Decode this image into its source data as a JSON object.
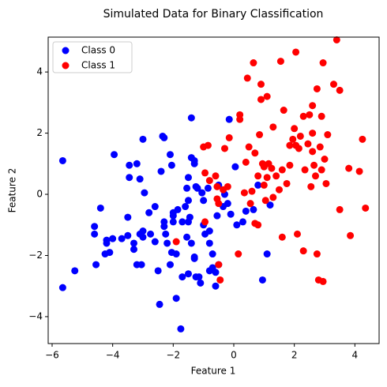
{
  "chart_data": {
    "type": "scatter",
    "title": "Simulated Data for Binary Classification",
    "x_label": "Feature 1",
    "y_label": "Feature 2",
    "xlim": [
      -6.13,
      4.8
    ],
    "ylim": [
      -4.88,
      5.14
    ],
    "xticks": [
      {
        "value": -6,
        "label": "−6"
      },
      {
        "value": -4,
        "label": "−4"
      },
      {
        "value": -2,
        "label": "−2"
      },
      0,
      2,
      4
    ],
    "yticks": [
      {
        "value": -4,
        "label": "−4"
      },
      {
        "value": -2,
        "label": "−2"
      },
      0,
      2,
      4
    ],
    "legend": "upper left",
    "series": [
      {
        "name": "Class 0",
        "color": "#0000ff",
        "x": [
          -5.65,
          -5.65,
          -5.25,
          -4.6,
          -4.6,
          -4.4,
          -4.55,
          -4.2,
          -4.2,
          -4.25,
          -4.1,
          -4.0,
          -3.95,
          -3.7,
          -3.5,
          -3.5,
          -3.45,
          -3.45,
          -3.3,
          -3.3,
          -3.2,
          -3.1,
          -3.05,
          -3.2,
          -3.1,
          -3.0,
          -3.0,
          -2.95,
          -3.0,
          -2.8,
          -2.6,
          -2.75,
          -2.6,
          -2.5,
          -2.45,
          -2.4,
          -2.35,
          -2.3,
          -2.3,
          -2.25,
          -2.2,
          -2.1,
          -2.05,
          -2.0,
          -2.0,
          -2.05,
          -2.1,
          -2.0,
          -1.9,
          -1.9,
          -1.85,
          -1.7,
          -1.7,
          -1.6,
          -1.55,
          -1.5,
          -1.45,
          -1.4,
          -1.5,
          -1.55,
          -1.5,
          -1.5,
          -1.4,
          -1.4,
          -1.3,
          -1.3,
          -1.3,
          -1.3,
          -1.2,
          -1.15,
          -1.1,
          -1.25,
          -1.0,
          -1.0,
          -0.95,
          -0.85,
          -0.8,
          -0.8,
          -0.8,
          -0.7,
          -0.7,
          -0.6,
          -0.6,
          -0.55,
          -0.5,
          -0.5,
          -0.3,
          -0.35,
          -0.2,
          -0.15,
          -0.1,
          0.05,
          0.1,
          0.3,
          0.4,
          0.65,
          0.8,
          0.95,
          1.1,
          1.2,
          -1.75,
          -2.3,
          -1.05,
          -1.25
        ],
        "values": [
          1.1,
          -3.05,
          -2.5,
          -1.05,
          -1.3,
          -0.45,
          -2.3,
          -1.5,
          -1.6,
          -1.95,
          -1.9,
          -1.45,
          1.3,
          -1.45,
          -1.35,
          -0.75,
          0.55,
          0.95,
          -1.6,
          -1.8,
          -2.3,
          -1.3,
          -2.3,
          1.0,
          0.5,
          -1.4,
          -1.2,
          0.05,
          1.8,
          -0.6,
          -0.4,
          -1.3,
          -1.55,
          -2.5,
          -3.6,
          0.75,
          1.9,
          1.85,
          -1.05,
          -1.3,
          -1.6,
          -2.3,
          -1.9,
          -0.9,
          -0.7,
          0.95,
          1.3,
          -0.6,
          -3.4,
          -1.95,
          -0.5,
          -0.9,
          -2.7,
          -0.4,
          -1.4,
          -2.6,
          -0.75,
          -1.6,
          -0.9,
          0.2,
          -0.2,
          0.55,
          2.5,
          1.2,
          1.1,
          1.0,
          -2.1,
          -2.05,
          0.2,
          -2.7,
          -2.9,
          -2.7,
          -0.2,
          -1.0,
          -1.3,
          0.2,
          -1.6,
          -1.2,
          -2.5,
          -2.4,
          -1.95,
          -2.55,
          -3.0,
          -0.7,
          0.3,
          -2.3,
          0.0,
          -0.4,
          -0.3,
          2.45,
          -0.65,
          0.9,
          -1.0,
          -0.9,
          -0.55,
          -0.5,
          0.3,
          -2.8,
          -1.95,
          -0.35,
          -4.4,
          -0.9,
          0.05,
          0.25
        ]
      },
      {
        "name": "Class 1",
        "color": "#ff0000",
        "x": [
          -1.9,
          -1.0,
          -0.95,
          -0.85,
          -0.95,
          -0.8,
          -0.6,
          -0.55,
          -0.55,
          -0.5,
          -0.35,
          -0.3,
          -0.2,
          -0.15,
          -0.45,
          -0.5,
          0.15,
          0.2,
          0.2,
          0.4,
          0.35,
          0.45,
          0.5,
          0.55,
          0.6,
          0.65,
          0.7,
          0.7,
          0.8,
          0.8,
          0.85,
          0.9,
          0.9,
          0.95,
          1.0,
          1.0,
          1.05,
          1.1,
          1.1,
          1.15,
          1.25,
          1.3,
          1.3,
          1.4,
          1.5,
          1.55,
          1.6,
          1.6,
          1.65,
          1.75,
          1.85,
          1.95,
          2.0,
          2.05,
          2.05,
          2.1,
          2.15,
          2.2,
          2.3,
          2.3,
          2.35,
          2.5,
          2.55,
          2.6,
          2.6,
          2.65,
          2.7,
          2.75,
          2.75,
          2.8,
          2.85,
          2.9,
          2.9,
          2.95,
          2.95,
          3.0,
          3.05,
          3.1,
          3.3,
          3.4,
          3.5,
          3.5,
          3.8,
          3.85,
          4.15,
          4.25,
          4.35,
          2.6,
          1.85,
          2.45
        ],
        "values": [
          -1.55,
          1.55,
          -0.9,
          1.6,
          0.7,
          0.45,
          0.6,
          -0.15,
          0.25,
          -0.3,
          0.15,
          1.5,
          0.25,
          1.85,
          -2.8,
          -2.3,
          -1.95,
          2.45,
          2.6,
          1.05,
          0.05,
          3.8,
          1.55,
          -0.3,
          0.1,
          4.3,
          1.35,
          -0.95,
          0.6,
          -1.0,
          1.95,
          3.1,
          3.6,
          1.0,
          0.3,
          0.9,
          -0.2,
          0.55,
          3.2,
          1.0,
          0.85,
          -0.1,
          2.2,
          0.6,
          0.15,
          4.35,
          0.8,
          -1.4,
          2.75,
          0.35,
          1.6,
          1.8,
          2.15,
          1.6,
          4.65,
          -1.3,
          1.5,
          1.9,
          -1.85,
          2.55,
          0.8,
          2.6,
          0.25,
          1.4,
          2.9,
          0.95,
          0.6,
          3.45,
          -1.95,
          -2.8,
          1.55,
          2.55,
          0.8,
          4.3,
          -2.85,
          1.15,
          0.35,
          1.95,
          3.6,
          5.05,
          3.4,
          -0.5,
          0.85,
          -1.35,
          0.75,
          1.8,
          -0.45,
          2.0,
          0.95,
          1.65
        ]
      }
    ]
  }
}
